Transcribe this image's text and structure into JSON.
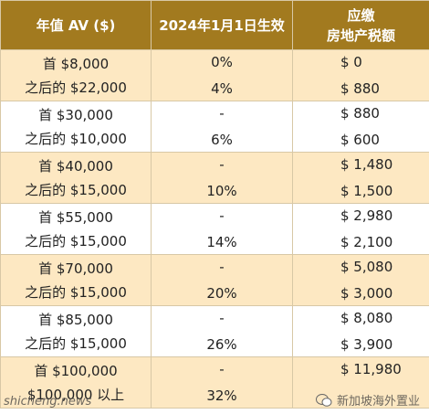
{
  "table": {
    "header": [
      [
        "年值 AV ($)"
      ],
      [
        "2024年1月1日生效"
      ],
      [
        "应缴",
        "房地产税额"
      ]
    ],
    "rows": [
      [
        [
          "首 $8,000",
          "之后的 $22,000"
        ],
        [
          "0%",
          "4%"
        ],
        [
          "$ 0",
          "$ 880"
        ]
      ],
      [
        [
          "首 $30,000",
          "之后的 $10,000"
        ],
        [
          "-",
          "6%"
        ],
        [
          "$ 880",
          "$ 600"
        ]
      ],
      [
        [
          "首 $40,000",
          "之后的 $15,000"
        ],
        [
          "-",
          "10%"
        ],
        [
          "$ 1,480",
          "$ 1,500"
        ]
      ],
      [
        [
          "首 $55,000",
          "之后的 $15,000"
        ],
        [
          "-",
          "14%"
        ],
        [
          "$ 2,980",
          "$ 2,100"
        ]
      ],
      [
        [
          "首 $70,000",
          "之后的 $15,000"
        ],
        [
          "-",
          "20%"
        ],
        [
          "$ 5,080",
          "$ 3,000"
        ]
      ],
      [
        [
          "首 $85,000",
          "之后的 $15,000"
        ],
        [
          "-",
          "26%"
        ],
        [
          "$ 8,080",
          "$ 3,900"
        ]
      ],
      [
        [
          "首 $100,000",
          "$100,000 以上"
        ],
        [
          "-",
          "32%"
        ],
        [
          "$ 11,980"
        ]
      ]
    ]
  },
  "watermark": {
    "left": "shicheng.news",
    "right": "新加坡海外置业"
  }
}
